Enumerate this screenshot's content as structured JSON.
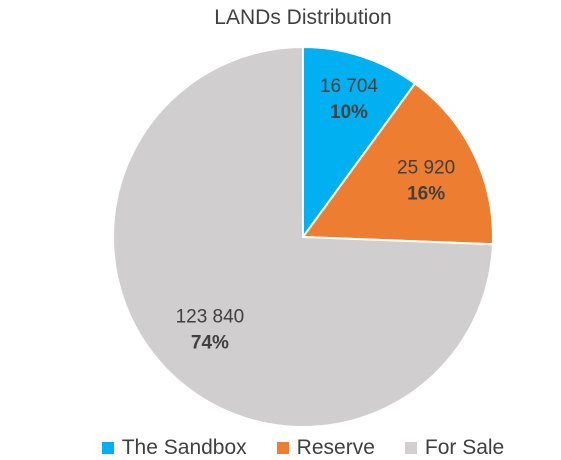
{
  "chart_data": {
    "type": "pie",
    "title": "LANDs Distribution",
    "slices": [
      {
        "name": "The Sandbox",
        "value": 16704,
        "value_label": "16 704",
        "percent_label": "10%",
        "color": "#00B0F0"
      },
      {
        "name": "Reserve",
        "value": 25920,
        "value_label": "25 920",
        "percent_label": "16%",
        "color": "#ED7D31"
      },
      {
        "name": "For Sale",
        "value": 123840,
        "value_label": "123 840",
        "percent_label": "74%",
        "color": "#D0CECE"
      }
    ],
    "legend_position": "bottom"
  }
}
